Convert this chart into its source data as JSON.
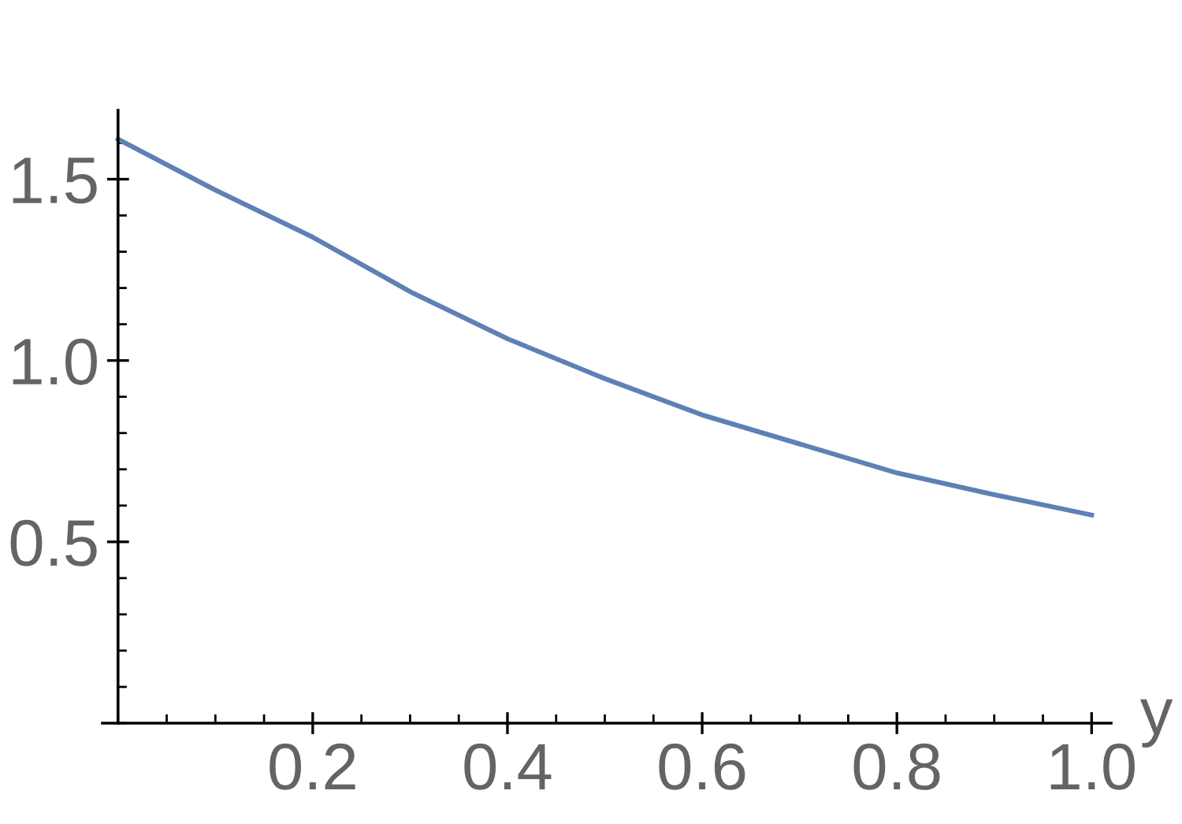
{
  "chart_data": {
    "type": "line",
    "xlabel": "y",
    "x": [
      0,
      0.1,
      0.2,
      0.3,
      0.4,
      0.5,
      0.6,
      0.7,
      0.8,
      0.9,
      1.0
    ],
    "series": [
      {
        "color": "#5e81b5",
        "values": [
          1.61,
          1.47,
          1.34,
          1.19,
          1.06,
          0.95,
          0.85,
          0.77,
          0.69,
          0.63,
          0.574
        ]
      }
    ],
    "xlim": [
      -0.016,
      1.02
    ],
    "ylim": [
      0,
      1.69
    ],
    "xticks": [
      0.2,
      0.4,
      0.6,
      0.8,
      {
        "value": 1,
        "label": "1.0"
      }
    ],
    "yticks": [
      0.5,
      {
        "value": 1,
        "label": "1.0"
      },
      1.5
    ],
    "grid": false,
    "legend": false,
    "marker": "none",
    "line_style": "solid"
  }
}
